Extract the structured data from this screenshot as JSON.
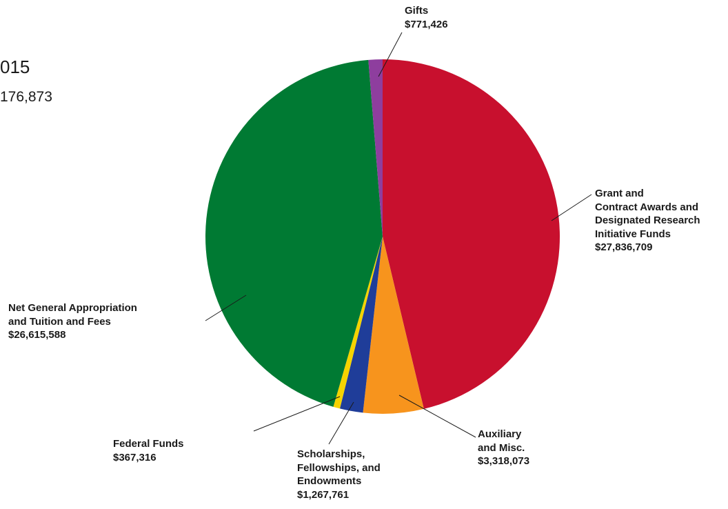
{
  "header": {
    "title_fragment": "015",
    "total_fragment": "176,873"
  },
  "chart_data": {
    "type": "pie",
    "title": "",
    "slices": [
      {
        "label": "Grant and Contract Awards and Designated Research Initiative Funds",
        "label_lines": [
          "Grant and",
          "Contract Awards and",
          "Designated Research",
          "Initiative Funds"
        ],
        "value": 27836709,
        "value_label": "$27,836,709",
        "color": "#c8102e"
      },
      {
        "label": "Auxiliary and Misc.",
        "label_lines": [
          "Auxiliary",
          "and Misc."
        ],
        "value": 3318073,
        "value_label": "$3,318,073",
        "color": "#f7941d"
      },
      {
        "label": "Scholarships, Fellowships, and Endowments",
        "label_lines": [
          "Scholarships,",
          "Fellowships, and",
          "Endowments"
        ],
        "value": 1267761,
        "value_label": "$1,267,761",
        "color": "#1f3d99"
      },
      {
        "label": "Federal Funds",
        "label_lines": [
          "Federal Funds"
        ],
        "value": 367316,
        "value_label": "$367,316",
        "color": "#f5d300"
      },
      {
        "label": "Net General Appropriation and Tuition and Fees",
        "label_lines": [
          "Net General Appropriation",
          "and Tuition and Fees"
        ],
        "value": 26615588,
        "value_label": "$26,615,588",
        "color": "#007a33"
      },
      {
        "label": "Gifts",
        "label_lines": [
          "Gifts"
        ],
        "value": 771426,
        "value_label": "$771,426",
        "color": "#8e3e9e"
      }
    ],
    "start": "12 o'clock",
    "direction": "clockwise",
    "legend": "none (leader-line labels)"
  }
}
